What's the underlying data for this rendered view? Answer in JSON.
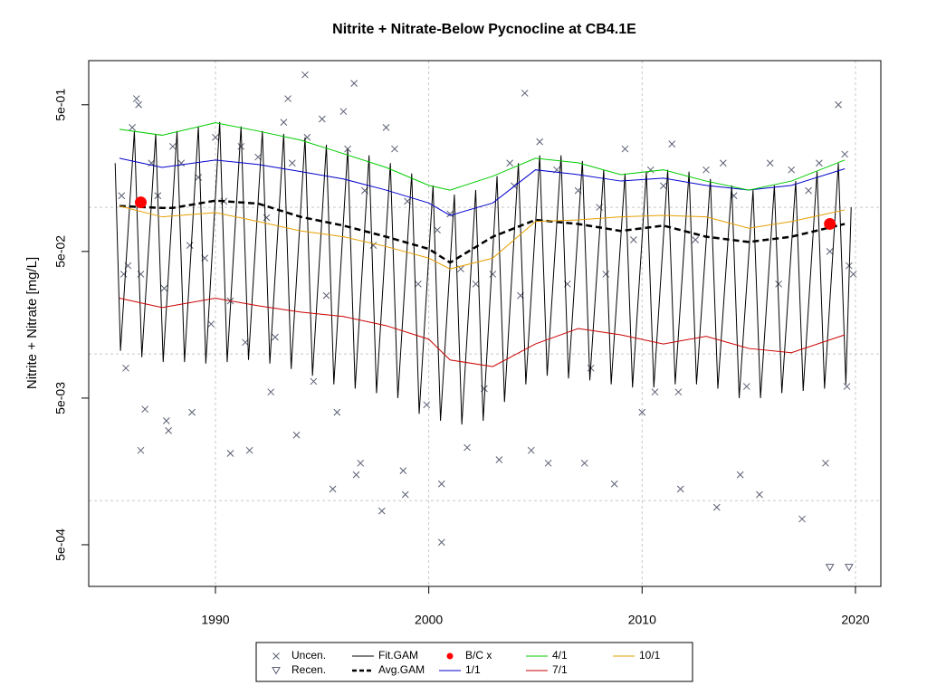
{
  "chart_data": {
    "type": "scatter",
    "title": "Nitrite + Nitrate-Below Pycnocline at CB4.1E",
    "ylabel": "Nitrite + Nitrate [mg/L]",
    "log_y": true,
    "xlim": [
      1984.06,
      2021.19
    ],
    "ylim": [
      0.00026,
      1.0
    ],
    "xticks": [
      1990,
      2000,
      2010,
      2020
    ],
    "yticks": [
      {
        "value": 0.5,
        "label": "5e-01"
      },
      {
        "value": 0.05,
        "label": "5e-02"
      },
      {
        "value": 0.005,
        "label": "5e-03"
      },
      {
        "value": 0.0005,
        "label": "5e-04"
      }
    ],
    "xgrid": true,
    "ygrid": [
      0.1,
      0.01,
      0.001
    ],
    "series": [
      {
        "name": "Uncen.",
        "marker": "x",
        "color": "#5a5f73",
        "x": [
          1985.6,
          1985.7,
          1985.9,
          1985.8,
          1986.1,
          1986.3,
          1986.4,
          1986.5,
          1986.7,
          1986.5,
          1987.0,
          1987.3,
          1987.6,
          1987.7,
          1987.8,
          1988.0,
          1988.4,
          1988.8,
          1988.9,
          1989.2,
          1989.5,
          1989.8,
          1990.0,
          1990.4,
          1990.7,
          1990.7,
          1991.2,
          1991.4,
          1991.6,
          1992.0,
          1992.4,
          1992.6,
          1992.8,
          1993.2,
          1993.4,
          1993.6,
          1993.8,
          1994.2,
          1994.3,
          1994.6,
          1995.0,
          1995.2,
          1995.5,
          1995.7,
          1996.0,
          1996.2,
          1996.6,
          1996.8,
          1996.5,
          1997.0,
          1997.4,
          1997.8,
          1998.0,
          1998.4,
          1998.8,
          1998.9,
          1999.0,
          1999.5,
          1999.9,
          2000.4,
          2000.6,
          2000.6,
          2001.0,
          2001.5,
          2001.8,
          2002.2,
          2002.6,
          2003.0,
          2003.3,
          2003.8,
          2004.0,
          2004.3,
          2004.5,
          2004.8,
          2005.2,
          2005.6,
          2006.0,
          2006.5,
          2007.0,
          2007.3,
          2007.6,
          2008.0,
          2008.3,
          2008.7,
          2009.2,
          2009.6,
          2010.0,
          2010.4,
          2010.6,
          2011.0,
          2011.4,
          2011.7,
          2011.8,
          2012.5,
          2013.0,
          2013.5,
          2013.8,
          2014.3,
          2014.6,
          2014.9,
          2015.5,
          2016.0,
          2016.4,
          2017.0,
          2017.5,
          2017.8,
          2018.3,
          2018.6,
          2018.8,
          2019.2,
          2019.5,
          2019.7,
          2019.6,
          2019.9
        ],
        "values": [
          0.12,
          0.035,
          0.04,
          0.008,
          0.35,
          0.55,
          0.5,
          0.0022,
          0.0042,
          0.035,
          0.2,
          0.12,
          0.028,
          0.0035,
          0.003,
          0.26,
          0.2,
          0.055,
          0.004,
          0.16,
          0.045,
          0.016,
          0.3,
          0.11,
          0.023,
          0.0021,
          0.26,
          0.012,
          0.0022,
          0.22,
          0.085,
          0.0055,
          0.013,
          0.38,
          0.55,
          0.2,
          0.0028,
          0.8,
          0.3,
          0.0065,
          0.4,
          0.025,
          0.0012,
          0.004,
          0.45,
          0.25,
          0.0015,
          0.0018,
          0.7,
          0.13,
          0.055,
          0.00085,
          0.35,
          0.25,
          0.0016,
          0.0011,
          0.11,
          0.03,
          0.0045,
          0.07,
          0.0013,
          0.00052,
          0.09,
          0.038,
          0.0023,
          0.03,
          0.0058,
          0.035,
          0.0019,
          0.2,
          0.14,
          0.025,
          0.6,
          0.0022,
          0.28,
          0.0018,
          0.18,
          0.03,
          0.13,
          0.0018,
          0.008,
          0.1,
          0.035,
          0.0013,
          0.25,
          0.06,
          0.004,
          0.18,
          0.0055,
          0.14,
          0.27,
          0.0055,
          0.0012,
          0.06,
          0.18,
          0.0009,
          0.2,
          0.12,
          0.0015,
          0.006,
          0.0011,
          0.2,
          0.03,
          0.18,
          0.00075,
          0.13,
          0.2,
          0.0018,
          0.05,
          0.5,
          0.23,
          0.04,
          0.006,
          0.035
        ]
      },
      {
        "name": "Recen.",
        "marker": "triangle",
        "color": "#5a5f73",
        "x": [
          2018.8,
          2019.7
        ],
        "values": [
          0.00035,
          0.00035
        ]
      },
      {
        "name": "Fit.GAM",
        "color": "#000000",
        "width": 1,
        "x": [
          1985.3,
          1985.55,
          1986.2,
          1986.55,
          1987.2,
          1987.55,
          1988.2,
          1988.55,
          1989.2,
          1989.55,
          1990.2,
          1990.55,
          1991.2,
          1991.55,
          1992.2,
          1992.55,
          1993.2,
          1993.55,
          1994.2,
          1994.55,
          1995.2,
          1995.55,
          1996.2,
          1996.55,
          1997.2,
          1997.55,
          1998.2,
          1998.55,
          1999.2,
          1999.55,
          2000.2,
          2000.55,
          2001.2,
          2001.55,
          2002.2,
          2002.55,
          2003.2,
          2003.55,
          2004.2,
          2004.55,
          2005.2,
          2005.55,
          2006.2,
          2006.55,
          2007.2,
          2007.55,
          2008.2,
          2008.55,
          2009.2,
          2009.55,
          2010.2,
          2010.55,
          2011.2,
          2011.55,
          2012.2,
          2012.55,
          2013.2,
          2013.55,
          2014.2,
          2014.55,
          2015.2,
          2015.55,
          2016.2,
          2016.55,
          2017.2,
          2017.55,
          2018.2,
          2018.55,
          2019.2,
          2019.55,
          2019.8
        ],
        "values": [
          0.2,
          0.0105,
          0.331,
          0.0095,
          0.317,
          0.0088,
          0.331,
          0.0088,
          0.356,
          0.0086,
          0.382,
          0.0088,
          0.356,
          0.0091,
          0.331,
          0.0086,
          0.317,
          0.0079,
          0.3,
          0.0071,
          0.267,
          0.0062,
          0.25,
          0.0058,
          0.226,
          0.0054,
          0.2,
          0.005,
          0.17,
          0.0039,
          0.141,
          0.0035,
          0.122,
          0.0033,
          0.131,
          0.0035,
          0.163,
          0.0047,
          0.2,
          0.0062,
          0.226,
          0.0071,
          0.226,
          0.0068,
          0.207,
          0.0066,
          0.18,
          0.0062,
          0.17,
          0.0059,
          0.175,
          0.0059,
          0.18,
          0.0062,
          0.175,
          0.0062,
          0.156,
          0.0058,
          0.141,
          0.005,
          0.131,
          0.005,
          0.141,
          0.0054,
          0.151,
          0.0056,
          0.175,
          0.0058,
          0.2,
          0.0062,
          0.1
        ]
      },
      {
        "name": "Avg.GAM",
        "color": "#000000",
        "width": 2.5,
        "dash": true,
        "x": [
          1985.5,
          1987.5,
          1988,
          1990,
          1992,
          1994,
          1996,
          1998,
          2000,
          2001,
          2003,
          2005,
          2007,
          2009,
          2011,
          2013,
          2015,
          2017,
          2019.5
        ],
        "values": [
          0.102,
          0.099,
          0.099,
          0.111,
          0.106,
          0.086,
          0.075,
          0.063,
          0.052,
          0.042,
          0.063,
          0.082,
          0.077,
          0.069,
          0.075,
          0.063,
          0.058,
          0.063,
          0.077
        ]
      },
      {
        "name": "B/C x",
        "marker": "dot",
        "color": "#ff0000",
        "x": [
          1986.5,
          2018.8
        ],
        "values": [
          0.108,
          0.077
        ]
      },
      {
        "name": "1/1",
        "color": "#0000cc",
        "width": 1,
        "x": [
          1985.5,
          1987.5,
          1990,
          1992,
          1994,
          1996,
          1998,
          2000,
          2001,
          2003,
          2005,
          2007,
          2009,
          2011,
          2013,
          2015,
          2017,
          2019.5
        ],
        "values": [
          0.216,
          0.187,
          0.21,
          0.196,
          0.175,
          0.156,
          0.131,
          0.107,
          0.088,
          0.107,
          0.18,
          0.167,
          0.151,
          0.158,
          0.141,
          0.131,
          0.141,
          0.183
        ]
      },
      {
        "name": "4/1",
        "color": "#00cc00",
        "width": 1,
        "x": [
          1985.5,
          1987.5,
          1990,
          1992,
          1994,
          1996,
          1998,
          2000,
          2001,
          2003,
          2005,
          2007,
          2009,
          2011,
          2013,
          2015,
          2017,
          2019.5
        ],
        "values": [
          0.34,
          0.31,
          0.377,
          0.331,
          0.287,
          0.232,
          0.187,
          0.141,
          0.131,
          0.163,
          0.216,
          0.201,
          0.167,
          0.18,
          0.151,
          0.131,
          0.151,
          0.21
        ]
      },
      {
        "name": "7/1",
        "color": "#cc0000",
        "width": 1,
        "x": [
          1985.5,
          1987.5,
          1990,
          1992,
          1994,
          1996,
          1998,
          2000,
          2001,
          2003,
          2005,
          2007,
          2009,
          2011,
          2013,
          2015,
          2017,
          2019.5
        ],
        "values": [
          0.024,
          0.0207,
          0.024,
          0.0213,
          0.0193,
          0.018,
          0.0156,
          0.0126,
          0.0091,
          0.0082,
          0.0117,
          0.0149,
          0.0135,
          0.0117,
          0.0132,
          0.0109,
          0.0102,
          0.0135
        ]
      },
      {
        "name": "10/1",
        "color": "#e69f00",
        "width": 1,
        "x": [
          1985.5,
          1987.5,
          1990,
          1992,
          1994,
          1996,
          1998,
          2000,
          2001,
          2003,
          2005,
          2007,
          2009,
          2011,
          2013,
          2015,
          2017,
          2019.5
        ],
        "values": [
          0.102,
          0.086,
          0.092,
          0.08,
          0.069,
          0.063,
          0.054,
          0.045,
          0.038,
          0.045,
          0.08,
          0.082,
          0.086,
          0.088,
          0.086,
          0.072,
          0.08,
          0.096
        ]
      }
    ]
  }
}
